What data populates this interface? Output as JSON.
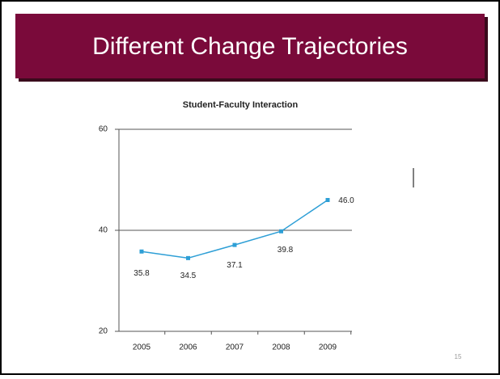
{
  "slide": {
    "title": "Different Change Trajectories",
    "number": "15"
  },
  "chart_data": {
    "type": "line",
    "title": "Student-Faculty Interaction",
    "categories": [
      "2005",
      "2006",
      "2007",
      "2008",
      "2009"
    ],
    "series": [
      {
        "name": "Student-Faculty Interaction",
        "color": "#2e9fd6",
        "values": [
          35.8,
          34.5,
          37.1,
          39.8,
          46.0
        ],
        "value_labels": [
          "35.8",
          "34.5",
          "37.1",
          "39.8",
          "46.0"
        ]
      }
    ],
    "ylim": [
      20,
      60
    ],
    "yticks": [
      20,
      40,
      60
    ],
    "grid": true
  }
}
